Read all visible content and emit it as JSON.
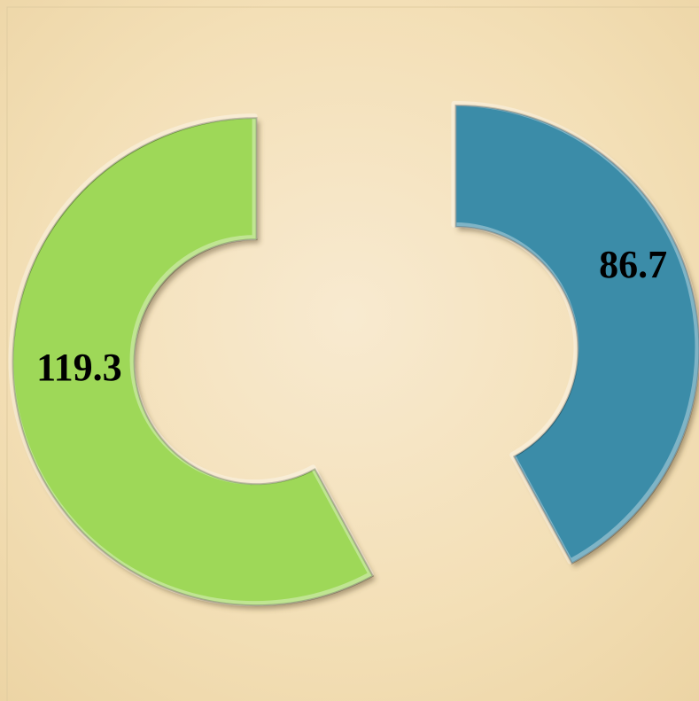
{
  "chart_data": {
    "type": "doughnut",
    "values": [
      86.7,
      119.3
    ],
    "colors": [
      "#3a8ca8",
      "#9ed858"
    ]
  }
}
